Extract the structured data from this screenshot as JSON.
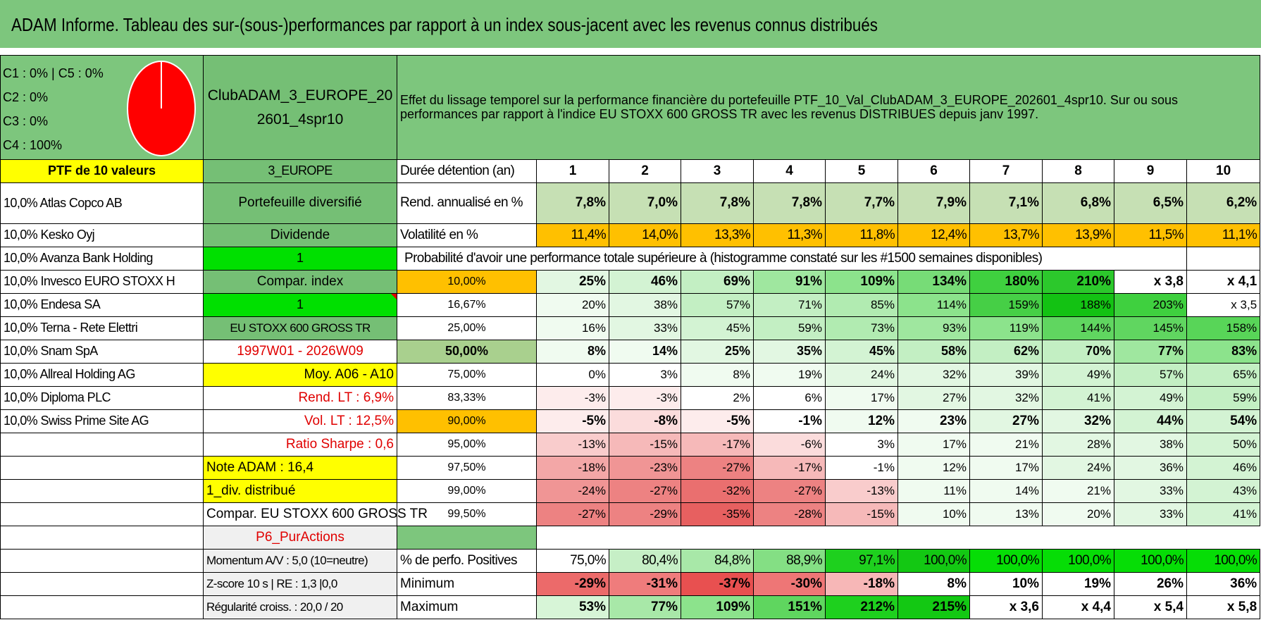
{
  "title": "ADAM Informe. Tableau des sur-(sous-)performances par rapport à un index sous-jacent avec les revenus connus distribués",
  "summary": {
    "lines": [
      "C1 : 0% | C5 : 0%",
      "C2 : 0%",
      "C3 : 0%",
      "C4 : 100%"
    ],
    "pie_color": "#ff0000"
  },
  "portfolio_name": "ClubADAM_3_EUROPE_202601_4spr10",
  "description": "Effet du lissage temporel sur la performance financière du portefeuille PTF_10_Val_ClubADAM_3_EUROPE_202601_4spr10. Sur ou sous performances par rapport à l'indice EU STOXX 600 GROSS TR avec les revenus DISTRIBUES depuis janv 1997.",
  "ptf_header": "PTF de 10 valeurs",
  "holdings": [
    "10,0% Atlas Copco AB",
    "10,0% Kesko Oyj",
    "10,0% Avanza Bank Holding",
    "10,0% Invesco EURO STOXX H",
    "10,0% Endesa SA",
    "10,0% Terna - Rete Elettri",
    "10,0% Snam SpA",
    "10,0% Allreal Holding AG",
    "10,0% Diploma PLC",
    "10,0% Swiss Prime Site AG"
  ],
  "info": {
    "region": "3_EUROPE",
    "type": "Portefeuille diversifié",
    "dividende": "Dividende",
    "one_a": "1",
    "compar_index": "Compar. index",
    "one_b": "1",
    "index_name": "EU STOXX 600 GROSS TR",
    "period": "1997W01 - 2026W09",
    "moy": "Moy. A06 - A10",
    "rend_lt": "Rend. LT : 6,9%",
    "vol_lt": "Vol. LT : 12,5%",
    "sharpe": "Ratio Sharpe : 0,6",
    "note": "Note ADAM : 16,4",
    "div": "1_div. distribué",
    "compar": "Compar. EU STOXX 600 GROSS TR",
    "p6": "P6_PurActions",
    "momentum": "Momentum A/V : 5,0 (10=neutre)",
    "zscore": "Z-score 10 s | RE : 1,3 |0,0",
    "regularite": "Régularité croiss. : 20,0 / 20"
  },
  "table": {
    "duree_label": "Durée détention (an)",
    "years": [
      "1",
      "2",
      "3",
      "4",
      "5",
      "6",
      "7",
      "8",
      "9",
      "10"
    ],
    "rend_label": "Rend. annualisé en %",
    "rend": [
      "7,8%",
      "7,0%",
      "7,8%",
      "7,8%",
      "7,7%",
      "7,9%",
      "7,1%",
      "6,8%",
      "6,5%",
      "6,2%"
    ],
    "vol_label": "Volatilité en %",
    "vol": [
      "11,4%",
      "14,0%",
      "13,3%",
      "11,3%",
      "11,8%",
      "12,4%",
      "13,7%",
      "13,9%",
      "11,5%",
      "11,1%"
    ],
    "prob_label": "Probabilité d'avoir une performance totale supérieure à (histogramme constaté sur les #1500 semaines disponibles)",
    "pct_rows": [
      {
        "p": "10,00%",
        "vals": [
          "25%",
          "46%",
          "69%",
          "91%",
          "109%",
          "134%",
          "180%",
          "210%",
          "x 3,8",
          "x 4,1"
        ]
      },
      {
        "p": "16,67%",
        "vals": [
          "20%",
          "38%",
          "57%",
          "71%",
          "85%",
          "114%",
          "159%",
          "188%",
          "203%",
          "x 3,5"
        ]
      },
      {
        "p": "25,00%",
        "vals": [
          "16%",
          "33%",
          "45%",
          "59%",
          "73%",
          "93%",
          "119%",
          "144%",
          "145%",
          "158%"
        ]
      },
      {
        "p": "50,00%",
        "vals": [
          "8%",
          "14%",
          "25%",
          "35%",
          "45%",
          "58%",
          "62%",
          "70%",
          "77%",
          "83%"
        ]
      },
      {
        "p": "75,00%",
        "vals": [
          "0%",
          "3%",
          "8%",
          "19%",
          "24%",
          "32%",
          "39%",
          "49%",
          "57%",
          "65%"
        ]
      },
      {
        "p": "83,33%",
        "vals": [
          "-3%",
          "-3%",
          "2%",
          "6%",
          "17%",
          "27%",
          "32%",
          "41%",
          "49%",
          "59%"
        ]
      },
      {
        "p": "90,00%",
        "vals": [
          "-5%",
          "-8%",
          "-5%",
          "-1%",
          "12%",
          "23%",
          "27%",
          "32%",
          "44%",
          "54%"
        ]
      },
      {
        "p": "95,00%",
        "vals": [
          "-13%",
          "-15%",
          "-17%",
          "-6%",
          "3%",
          "17%",
          "21%",
          "28%",
          "38%",
          "50%"
        ]
      },
      {
        "p": "97,50%",
        "vals": [
          "-18%",
          "-23%",
          "-27%",
          "-17%",
          "-1%",
          "12%",
          "17%",
          "24%",
          "36%",
          "46%"
        ]
      },
      {
        "p": "99,00%",
        "vals": [
          "-24%",
          "-27%",
          "-32%",
          "-27%",
          "-13%",
          "11%",
          "14%",
          "21%",
          "33%",
          "43%"
        ]
      },
      {
        "p": "99,50%",
        "vals": [
          "-27%",
          "-29%",
          "-35%",
          "-28%",
          "-15%",
          "10%",
          "13%",
          "20%",
          "33%",
          "41%"
        ]
      }
    ],
    "pos_label": "% de perfo. Positives",
    "pos": [
      "75,0%",
      "80,4%",
      "84,8%",
      "88,9%",
      "97,1%",
      "100,0%",
      "100,0%",
      "100,0%",
      "100,0%",
      "100,0%"
    ],
    "min_label": "Minimum",
    "min": [
      "-29%",
      "-31%",
      "-37%",
      "-30%",
      "-18%",
      "8%",
      "10%",
      "19%",
      "26%",
      "36%"
    ],
    "max_label": "Maximum",
    "max": [
      "53%",
      "77%",
      "109%",
      "151%",
      "212%",
      "215%",
      "x 3,6",
      "x 4,4",
      "x 5,4",
      "x 5,8"
    ]
  }
}
